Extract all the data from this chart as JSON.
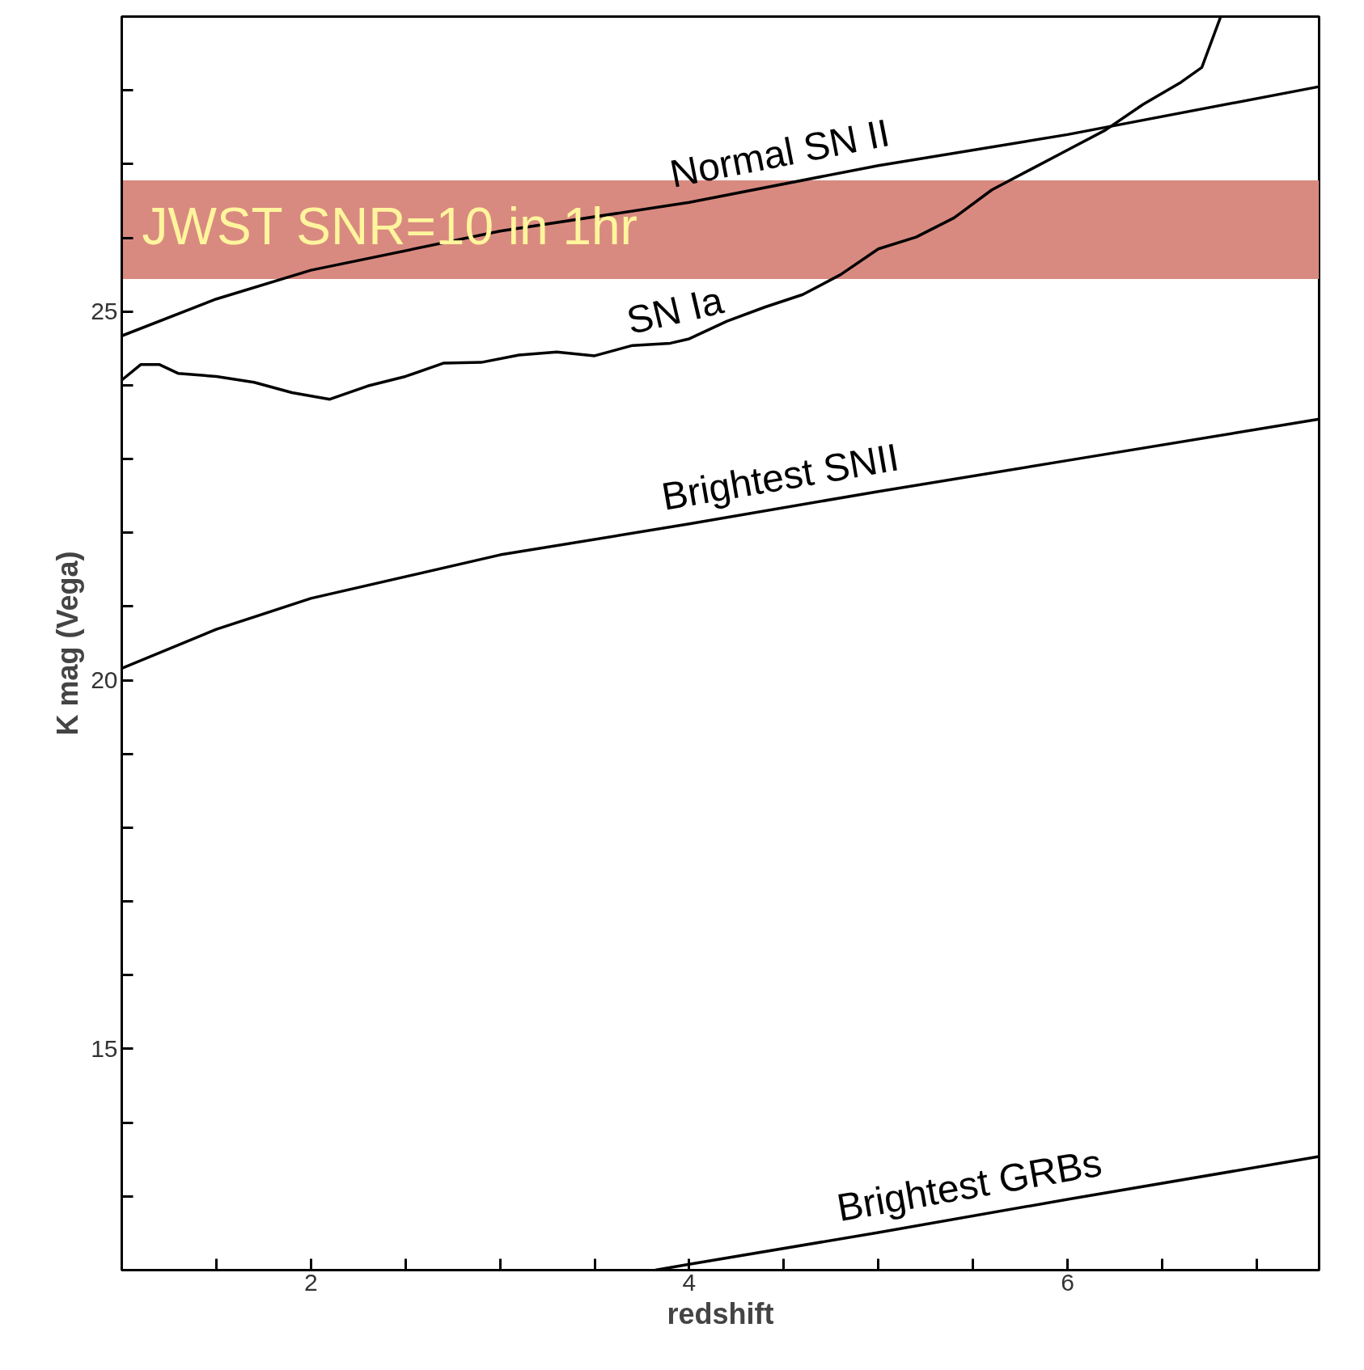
{
  "chart_data": {
    "type": "line",
    "xlabel": "redshift",
    "ylabel": "K mag (Vega)",
    "xlim": [
      1,
      7.33
    ],
    "ylim": [
      12,
      29
    ],
    "xticks": [
      {
        "value": 1.5,
        "label": null
      },
      2,
      {
        "value": 2.5,
        "label": null
      },
      {
        "value": 3,
        "label": null
      },
      {
        "value": 3.5,
        "label": null
      },
      4,
      {
        "value": 4.5,
        "label": null
      },
      {
        "value": 5,
        "label": null
      },
      {
        "value": 5.5,
        "label": null
      },
      6,
      {
        "value": 6.5,
        "label": null
      },
      {
        "value": 7,
        "label": null
      }
    ],
    "yticks": [
      {
        "value": 13,
        "label": null
      },
      {
        "value": 14,
        "label": null
      },
      15,
      {
        "value": 16,
        "label": null
      },
      {
        "value": 17,
        "label": null
      },
      {
        "value": 18,
        "label": null
      },
      {
        "value": 19,
        "label": null
      },
      20,
      {
        "value": 21,
        "label": null
      },
      {
        "value": 22,
        "label": null
      },
      {
        "value": 23,
        "label": null
      },
      {
        "value": 24,
        "label": null
      },
      25,
      {
        "value": 26,
        "label": null
      },
      {
        "value": 27,
        "label": null
      },
      {
        "value": 28,
        "label": null
      }
    ],
    "grid": false,
    "marker": "none",
    "line_style": "solid",
    "bands": [
      {
        "axis": "y",
        "from": 25.44,
        "to": 26.78,
        "label": "JWST SNR=10 in 1hr",
        "color": "#d98a80"
      }
    ],
    "series": [
      {
        "name": "Normal SN II",
        "color": "#000000",
        "x": [
          1,
          1.5,
          2,
          3,
          4,
          5,
          6,
          7.33
        ],
        "values": [
          24.67,
          25.17,
          25.56,
          26.09,
          26.48,
          26.98,
          27.4,
          28.05
        ]
      },
      {
        "name": "SN Ia",
        "color": "#000000",
        "x": [
          1,
          1.1,
          1.2,
          1.3,
          1.5,
          1.7,
          1.9,
          2.1,
          2.3,
          2.5,
          2.7,
          2.9,
          3.1,
          3.3,
          3.5,
          3.7,
          3.9,
          4.0,
          4.2,
          4.4,
          4.6,
          4.8,
          5.0,
          5.2,
          5.4,
          5.6,
          5.8,
          6.0,
          6.2,
          6.4,
          6.6,
          6.71,
          6.81
        ],
        "values": [
          24.07,
          24.28,
          24.28,
          24.16,
          24.12,
          24.04,
          23.9,
          23.81,
          23.99,
          24.12,
          24.3,
          24.31,
          24.41,
          24.45,
          24.4,
          24.54,
          24.57,
          24.63,
          24.87,
          25.06,
          25.23,
          25.5,
          25.85,
          26.01,
          26.27,
          26.65,
          26.92,
          27.19,
          27.46,
          27.81,
          28.11,
          28.31,
          29.0
        ]
      },
      {
        "name": "Brightest SNII",
        "color": "#000000",
        "x": [
          1,
          1.5,
          2,
          3,
          4,
          5,
          6,
          7.33
        ],
        "values": [
          20.16,
          20.69,
          21.11,
          21.7,
          22.12,
          22.56,
          22.98,
          23.54
        ]
      },
      {
        "name": "Brightest GRBs",
        "color": "#000000",
        "x": [
          3.82,
          4,
          5,
          6,
          7.33
        ],
        "values": [
          12.0,
          12.08,
          12.51,
          12.96,
          13.54
        ]
      }
    ]
  }
}
